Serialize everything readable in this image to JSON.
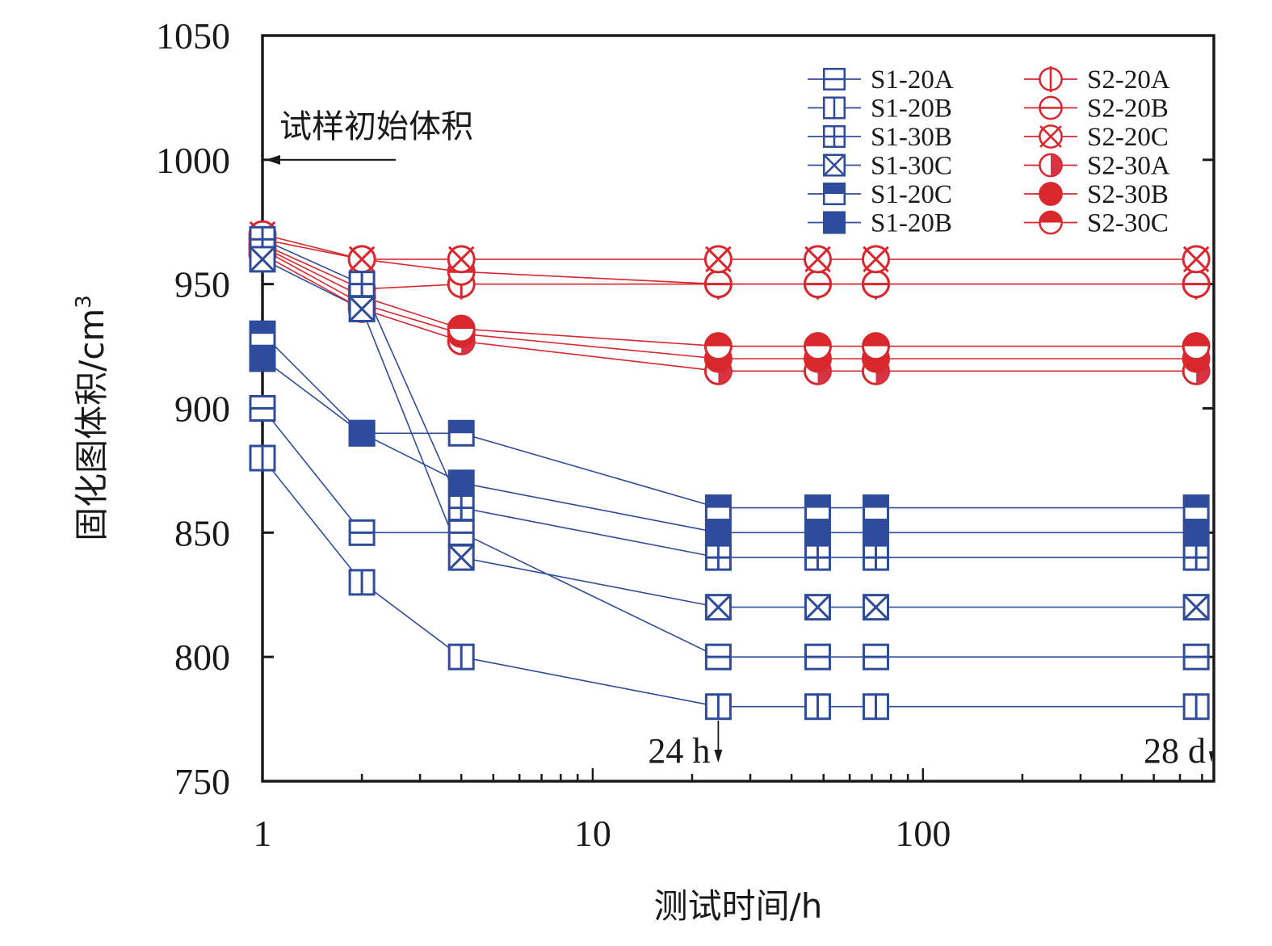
{
  "chart_data": {
    "type": "line",
    "title": "",
    "xlabel": "测试时间/h",
    "ylabel": "固化图体积/cm",
    "ylabel_sup": "3",
    "xscale": "log",
    "xlim": [
      1,
      760
    ],
    "ylim": [
      750,
      1050
    ],
    "grid": false,
    "legend_position": "top-right",
    "x_ticks": [
      1,
      10,
      100
    ],
    "x_tick_labels": [
      "1",
      "10",
      "100"
    ],
    "y_ticks": [
      750,
      800,
      850,
      900,
      950,
      1000,
      1050
    ],
    "y_tick_labels": [
      "750",
      "800",
      "850",
      "900",
      "950",
      "1000",
      "1050"
    ],
    "x": [
      1,
      2,
      4,
      24,
      48,
      72,
      672
    ],
    "colors": {
      "blue": "#2f4c9c",
      "red": "#d9272e",
      "red_half": "#d63344"
    },
    "series": [
      {
        "name": "S1-20A",
        "color": "#2f4c9c",
        "marker": "square-hline",
        "values": [
          900,
          850,
          850,
          800,
          800,
          800,
          800
        ]
      },
      {
        "name": "S1-20B",
        "color": "#2f4c9c",
        "marker": "square-vline",
        "values": [
          880,
          830,
          800,
          780,
          780,
          780,
          780
        ]
      },
      {
        "name": "S1-30B",
        "color": "#2f4c9c",
        "marker": "square-cross",
        "values": [
          968,
          950,
          860,
          840,
          840,
          840,
          840
        ]
      },
      {
        "name": "S1-30C",
        "color": "#2f4c9c",
        "marker": "square-x",
        "values": [
          960,
          940,
          840,
          820,
          820,
          820,
          820
        ]
      },
      {
        "name": "S1-20C",
        "color": "#2f4c9c",
        "marker": "square-half-top",
        "values": [
          930,
          890,
          890,
          860,
          860,
          860,
          860
        ]
      },
      {
        "name": "S1-20B",
        "color": "#2f4c9c",
        "marker": "square-filled",
        "values": [
          920,
          890,
          870,
          850,
          850,
          850,
          850
        ]
      },
      {
        "name": "S2-20A",
        "color": "#d9272e",
        "marker": "circle-vline",
        "values": [
          966,
          948,
          950,
          950,
          950,
          950,
          950
        ]
      },
      {
        "name": "S2-20B",
        "color": "#d9272e",
        "marker": "circle-hline",
        "values": [
          968,
          960,
          955,
          950,
          950,
          950,
          950
        ]
      },
      {
        "name": "S2-20C",
        "color": "#d9272e",
        "marker": "circle-x",
        "values": [
          970,
          960,
          960,
          960,
          960,
          960,
          960
        ]
      },
      {
        "name": "S2-30A",
        "color": "#d9272e",
        "marker": "circle-half-right",
        "values": [
          962,
          940,
          927,
          915,
          915,
          915,
          915
        ]
      },
      {
        "name": "S2-30B",
        "color": "#d9272e",
        "marker": "circle-filled",
        "values": [
          964,
          942,
          930,
          920,
          920,
          920,
          920
        ]
      },
      {
        "name": "S2-30C",
        "color": "#d9272e",
        "marker": "circle-half-top",
        "values": [
          965,
          945,
          932,
          925,
          925,
          925,
          925
        ]
      }
    ],
    "annotations": [
      {
        "text": "试样初始体积",
        "value": 1000,
        "kind": "initial-volume-arrow"
      },
      {
        "text": "24 h",
        "x": 24,
        "kind": "time-marker-arrow"
      },
      {
        "text": "28 d",
        "x": 760,
        "kind": "time-marker-arrow"
      }
    ]
  }
}
